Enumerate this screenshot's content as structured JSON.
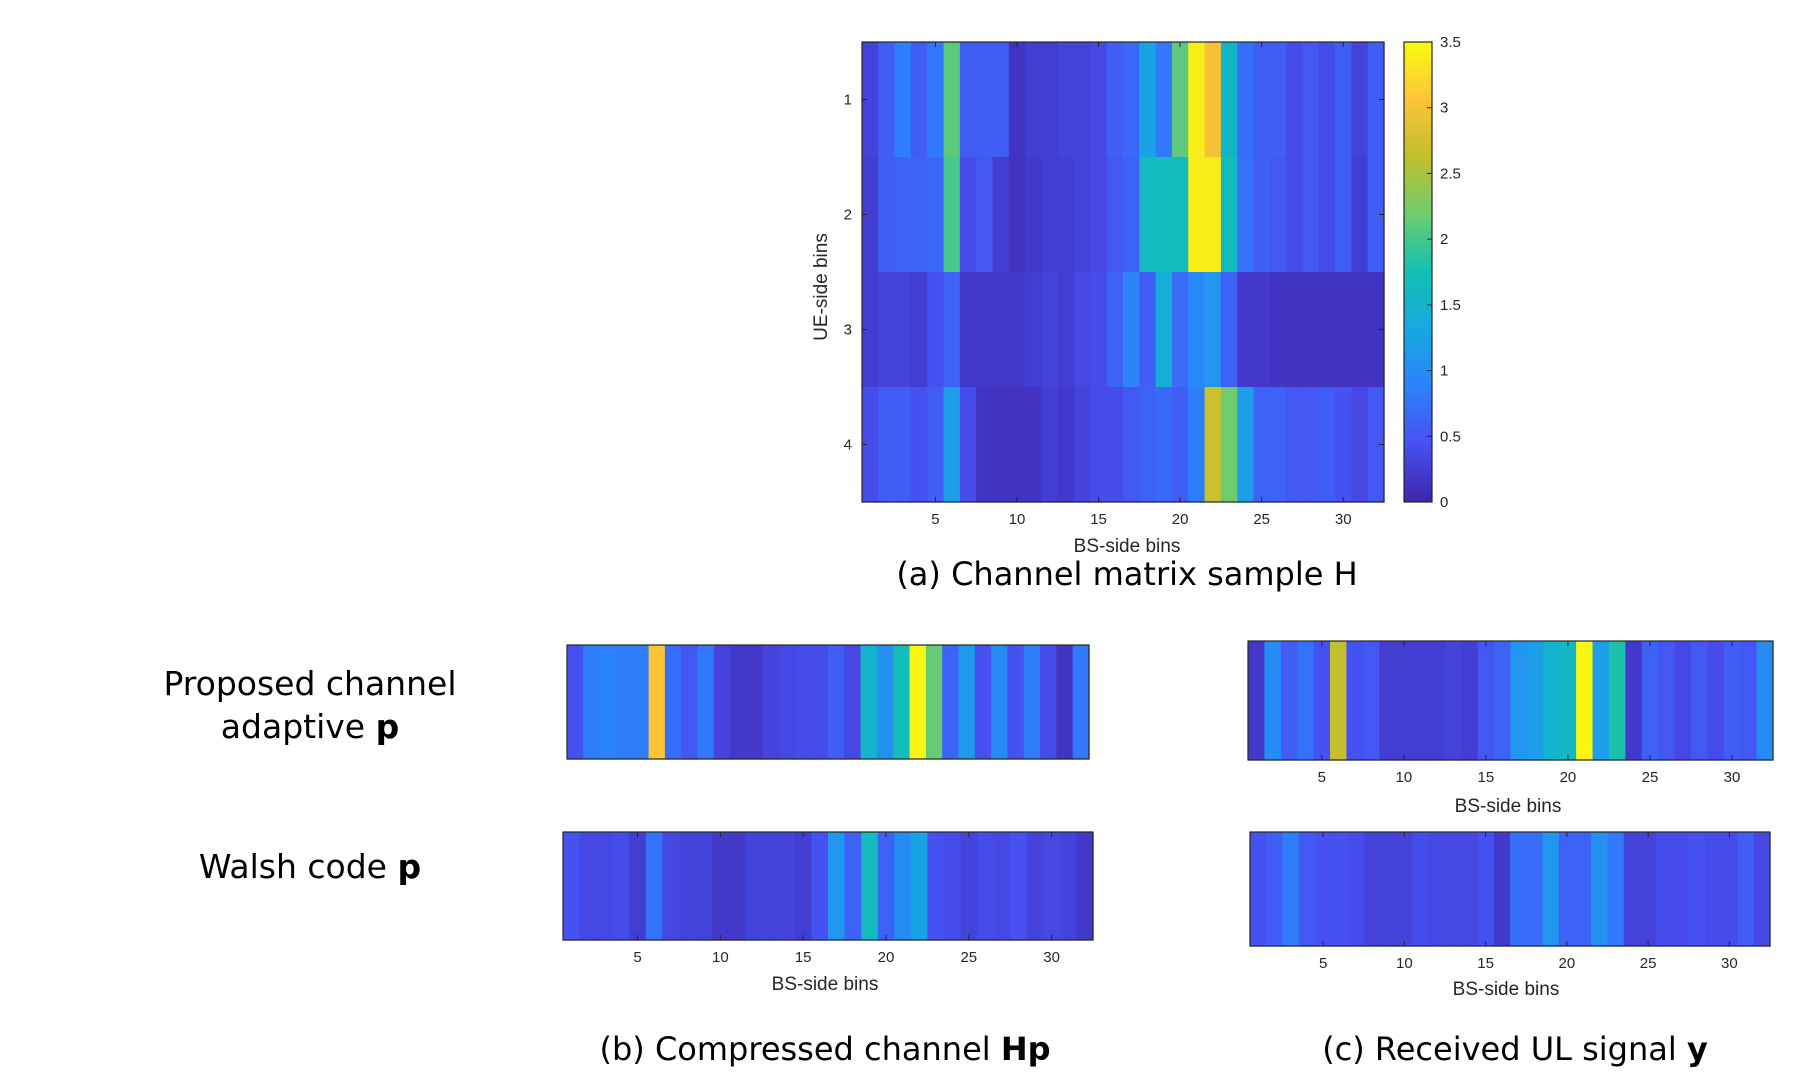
{
  "chart_data": [
    {
      "id": "a",
      "type": "heatmap",
      "x_categories": [
        1,
        2,
        3,
        4,
        5,
        6,
        7,
        8,
        9,
        10,
        11,
        12,
        13,
        14,
        15,
        16,
        17,
        18,
        19,
        20,
        21,
        22,
        23,
        24,
        25,
        26,
        27,
        28,
        29,
        30,
        31,
        32
      ],
      "y_categories": [
        1,
        2,
        3,
        4
      ],
      "values": [
        [
          0.3,
          0.55,
          0.85,
          0.55,
          0.8,
          2.1,
          0.55,
          0.55,
          0.55,
          0.15,
          0.25,
          0.25,
          0.3,
          0.3,
          0.35,
          0.55,
          0.65,
          1.25,
          0.8,
          2.1,
          3.4,
          3.0,
          1.55,
          0.7,
          0.55,
          0.55,
          0.4,
          0.5,
          0.4,
          0.55,
          0.3,
          0.55
        ],
        [
          0.25,
          0.55,
          0.6,
          0.6,
          0.65,
          2.0,
          0.4,
          0.5,
          0.25,
          0.15,
          0.2,
          0.25,
          0.25,
          0.3,
          0.35,
          0.5,
          0.6,
          1.65,
          1.65,
          1.7,
          3.4,
          3.4,
          1.65,
          0.75,
          0.55,
          0.5,
          0.4,
          0.5,
          0.4,
          0.55,
          0.25,
          0.55
        ],
        [
          0.25,
          0.3,
          0.3,
          0.25,
          0.45,
          0.6,
          0.2,
          0.2,
          0.2,
          0.2,
          0.25,
          0.3,
          0.25,
          0.35,
          0.4,
          0.6,
          0.9,
          0.55,
          1.4,
          0.7,
          0.95,
          1.1,
          0.6,
          0.2,
          0.2,
          0.15,
          0.15,
          0.15,
          0.15,
          0.15,
          0.15,
          0.15
        ],
        [
          0.4,
          0.55,
          0.55,
          0.45,
          0.55,
          1.2,
          0.4,
          0.15,
          0.15,
          0.15,
          0.15,
          0.25,
          0.2,
          0.3,
          0.4,
          0.4,
          0.5,
          0.6,
          0.65,
          0.55,
          0.85,
          2.7,
          2.2,
          1.2,
          0.6,
          0.6,
          0.5,
          0.5,
          0.55,
          0.45,
          0.35,
          0.5
        ]
      ],
      "clim": [
        0,
        3.5
      ],
      "xticks": [
        5,
        10,
        15,
        20,
        25,
        30
      ],
      "yticks": [
        1,
        2,
        3,
        4
      ],
      "xlabel": "BS-side bins",
      "ylabel": "UE-side bins",
      "colorbar": {
        "ticks": [
          0,
          0.5,
          1,
          1.5,
          2,
          2.5,
          3,
          3.5
        ],
        "tick_labels": [
          "0",
          "0.5",
          "1",
          "1.5",
          "2",
          "2.5",
          "3",
          "3.5"
        ]
      },
      "grid": false
    },
    {
      "id": "b-proposed",
      "type": "heatmap",
      "values": [
        0.45,
        0.85,
        0.9,
        0.85,
        0.85,
        3.05,
        0.7,
        0.5,
        0.8,
        0.3,
        0.2,
        0.2,
        0.3,
        0.35,
        0.4,
        0.4,
        0.55,
        0.35,
        1.5,
        1.05,
        1.7,
        3.45,
        2.15,
        0.6,
        1.15,
        0.45,
        1.0,
        0.45,
        0.85,
        0.4,
        0.15,
        0.8
      ],
      "clim": [
        0,
        3.5
      ]
    },
    {
      "id": "b-walsh",
      "type": "heatmap",
      "values": [
        0.45,
        0.35,
        0.35,
        0.4,
        0.25,
        0.75,
        0.35,
        0.3,
        0.3,
        0.2,
        0.2,
        0.3,
        0.3,
        0.3,
        0.25,
        0.45,
        1.1,
        0.6,
        1.65,
        0.6,
        1.0,
        1.25,
        0.45,
        0.4,
        0.3,
        0.4,
        0.35,
        0.45,
        0.3,
        0.35,
        0.3,
        0.2
      ],
      "clim": [
        0,
        3.5
      ],
      "xticks": [
        5,
        10,
        15,
        20,
        25,
        30
      ],
      "xlabel": "BS-side bins"
    },
    {
      "id": "c-proposed",
      "type": "heatmap",
      "values": [
        0.2,
        1.0,
        0.55,
        0.75,
        0.45,
        2.65,
        0.45,
        0.5,
        0.25,
        0.25,
        0.25,
        0.25,
        0.3,
        0.25,
        0.5,
        0.6,
        1.1,
        1.2,
        1.5,
        1.6,
        3.45,
        1.2,
        1.8,
        0.2,
        0.6,
        0.5,
        0.35,
        0.5,
        0.4,
        0.55,
        0.5,
        1.0
      ],
      "clim": [
        0,
        3.5
      ],
      "xticks": [
        5,
        10,
        15,
        20,
        25,
        30
      ],
      "xlabel": "BS-side bins"
    },
    {
      "id": "c-walsh",
      "type": "heatmap",
      "values": [
        0.45,
        0.55,
        0.85,
        0.5,
        0.45,
        0.45,
        0.4,
        0.3,
        0.3,
        0.3,
        0.4,
        0.35,
        0.35,
        0.35,
        0.45,
        0.2,
        0.7,
        0.7,
        1.1,
        0.6,
        0.6,
        1.05,
        0.8,
        0.3,
        0.3,
        0.4,
        0.4,
        0.45,
        0.4,
        0.4,
        0.55,
        0.35
      ],
      "clim": [
        0,
        3.5
      ],
      "xticks": [
        5,
        10,
        15,
        20,
        25,
        30
      ],
      "xlabel": "BS-side bins"
    }
  ],
  "captions": {
    "a": "(a) Channel matrix sample H",
    "b_prefix": "(b) Compressed channel ",
    "b_bold": "Hp",
    "c_prefix": "(c) Received UL signal ",
    "c_bold": "y"
  },
  "row_labels": {
    "proposed_line1": "Proposed channel",
    "proposed_line2_prefix": "adaptive ",
    "proposed_line2_bold": "p",
    "walsh_prefix": "Walsh code ",
    "walsh_bold": "p"
  },
  "colormap": "parula",
  "colors": {
    "axis": "#262626",
    "background": "#ffffff"
  }
}
